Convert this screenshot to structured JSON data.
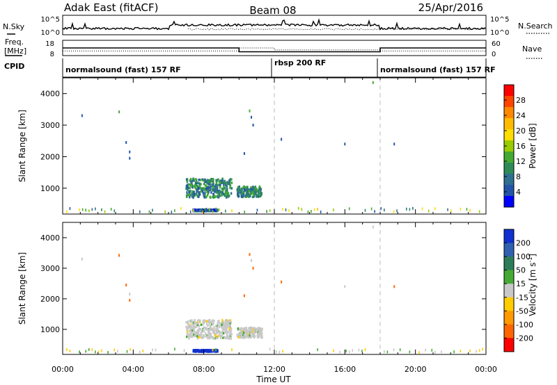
{
  "header": {
    "station": "Adak East (fitACF)",
    "beam": "Beam 08",
    "date": "25/Apr/2016"
  },
  "top_panel": {
    "left_label": "N.Sky",
    "left_ticks": [
      "10^5",
      "10^0"
    ],
    "right_ticks": [
      "10^5",
      "10^0"
    ],
    "right_label": "N.Search"
  },
  "freq_panel": {
    "left_label_1": "Freq.",
    "left_label_2": "[MHz]",
    "left_ticks": [
      "18",
      "8"
    ],
    "right_ticks": [
      "60",
      "0"
    ],
    "right_label": "Nave"
  },
  "cpid_panel": {
    "label": "CPID",
    "segments": [
      "normalsound (fast) 157 RF",
      "rbsp 200 RF",
      "normalsound (fast) 157 RF"
    ]
  },
  "power_colorbar": {
    "label": "Power [dB]",
    "ticks": [
      "28",
      "24",
      "20",
      "16",
      "12",
      "8",
      "4"
    ],
    "colors": [
      "#ff0000",
      "#ff4400",
      "#ff8800",
      "#ffbb00",
      "#ffdd00",
      "#99cc00",
      "#44aa33",
      "#2e8b57",
      "#2f6f8f",
      "#2255aa",
      "#0000ff"
    ]
  },
  "velocity_colorbar": {
    "label": "Velocity [m s",
    "label_sup": "-1",
    "label_end": "]",
    "ticks": [
      "200",
      "100",
      "50",
      "15",
      "-15",
      "-50",
      "-100",
      "-200"
    ],
    "colors": [
      "#1030d0",
      "#3060b0",
      "#2e7d5a",
      "#44aa33",
      "#c8c8c8",
      "#ffcc00",
      "#ff9900",
      "#ff6600",
      "#ff0000"
    ]
  },
  "chart_data": {
    "type": "heatmap",
    "xlabel": "Time UT",
    "ylabel": "Slant Range [km]",
    "x_ticks": [
      "00:00",
      "04:00",
      "08:00",
      "12:00",
      "16:00",
      "20:00",
      "00:00"
    ],
    "x_range_hours": [
      0,
      24
    ],
    "y_ticks": [
      1000,
      2000,
      3000,
      4000
    ],
    "y_range_km": [
      180,
      4500
    ],
    "mode_change_hours": [
      12,
      18
    ],
    "frequency_segments_mhz": [
      {
        "start": 0,
        "end": 10,
        "value": 13.0
      },
      {
        "start": 10,
        "end": 18,
        "value": 10.5
      },
      {
        "start": 18,
        "end": 24,
        "value": 13.0
      }
    ],
    "nave_segments": [
      {
        "start": 0,
        "end": 10,
        "value": 18
      },
      {
        "start": 10,
        "end": 12,
        "value": 30
      },
      {
        "start": 12,
        "end": 18,
        "value": 22
      },
      {
        "start": 18,
        "end": 24,
        "value": 18
      }
    ],
    "power_clusters": [
      {
        "t_start": 7.0,
        "t_end": 9.6,
        "r_start": 700,
        "r_end": 1300,
        "value": 8
      },
      {
        "t_start": 9.9,
        "t_end": 11.3,
        "r_start": 720,
        "r_end": 1050,
        "value": 8
      },
      {
        "t_start": 7.4,
        "t_end": 8.8,
        "r_start": 270,
        "r_end": 320,
        "value": 4
      }
    ],
    "velocity_clusters": [
      {
        "t_start": 7.0,
        "t_end": 9.6,
        "r_start": 700,
        "r_end": 1300,
        "value": 0
      },
      {
        "t_start": 9.9,
        "t_end": 11.3,
        "r_start": 720,
        "r_end": 1050,
        "value": 0
      },
      {
        "t_start": 7.4,
        "t_end": 8.8,
        "r_start": 270,
        "r_end": 320,
        "value": 200
      }
    ],
    "isolated_points": [
      {
        "t": 1.1,
        "r": 3300
      },
      {
        "t": 3.2,
        "r": 3420
      },
      {
        "t": 3.6,
        "r": 2450
      },
      {
        "t": 3.8,
        "r": 2150
      },
      {
        "t": 3.8,
        "r": 1950
      },
      {
        "t": 10.3,
        "r": 2100
      },
      {
        "t": 10.6,
        "r": 3450
      },
      {
        "t": 10.7,
        "r": 3250
      },
      {
        "t": 10.8,
        "r": 3000
      },
      {
        "t": 12.4,
        "r": 2550
      },
      {
        "t": 16.0,
        "r": 2400
      },
      {
        "t": 17.6,
        "r": 4350
      },
      {
        "t": 18.8,
        "r": 2400
      }
    ]
  }
}
